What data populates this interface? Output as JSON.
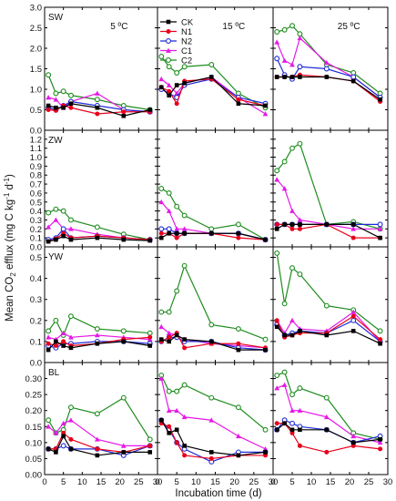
{
  "chart_data": {
    "type": "line",
    "xlabel": "Incubation time (d)",
    "ylabel_parts": {
      "a": "Mean CO",
      "b": "2",
      "c": " efflux (mg C kg",
      "d": "-1",
      "e": " d",
      "f": "-1",
      "g": ")"
    },
    "x": [
      1,
      3,
      5,
      7,
      14,
      21,
      28
    ],
    "xticks": [
      0,
      5,
      10,
      15,
      20,
      25,
      30
    ],
    "temperatures": [
      "5 ºC",
      "15 ºC",
      "25 ºC"
    ],
    "legend": [
      {
        "name": "CK",
        "color": "#000000",
        "marker": "square"
      },
      {
        "name": "N1",
        "color": "#e8001c",
        "marker": "circle"
      },
      {
        "name": "N2",
        "color": "#1f2bd6",
        "marker": "circle-open"
      },
      {
        "name": "C1",
        "color": "#e619e6",
        "marker": "triangle"
      },
      {
        "name": "C2",
        "color": "#1e8c1e",
        "marker": "circle-open"
      }
    ],
    "rows": [
      {
        "label": "SW",
        "ylim": [
          0,
          3.0
        ],
        "yticks": [
          "0.0",
          "0.5",
          "1.0",
          "1.5",
          "2.0",
          "2.5",
          "3.0"
        ],
        "panels": [
          {
            "CK": [
              0.6,
              0.55,
              0.55,
              0.65,
              0.55,
              0.35,
              0.5
            ],
            "N1": [
              0.5,
              0.48,
              0.6,
              0.55,
              0.4,
              0.45,
              0.45
            ],
            "N2": [
              0.55,
              0.5,
              0.6,
              0.7,
              0.6,
              0.5,
              0.45
            ],
            "C1": [
              0.8,
              0.75,
              0.55,
              0.7,
              0.9,
              0.5,
              0.45
            ],
            "C2": [
              1.35,
              0.9,
              0.95,
              0.85,
              0.75,
              0.6,
              0.5
            ]
          },
          {
            "CK": [
              1.05,
              0.85,
              1.1,
              1.15,
              1.3,
              0.65,
              0.6
            ],
            "N1": [
              1.05,
              0.95,
              0.65,
              1.2,
              1.25,
              0.75,
              0.6
            ],
            "N2": [
              1.0,
              0.9,
              0.8,
              1.1,
              1.25,
              0.8,
              0.65
            ],
            "C1": [
              1.25,
              1.1,
              0.9,
              1.15,
              1.3,
              0.8,
              0.4
            ],
            "C2": [
              1.8,
              1.55,
              1.4,
              1.55,
              1.6,
              0.9,
              0.55
            ]
          },
          {
            "CK": [
              1.3,
              1.3,
              1.3,
              1.3,
              1.3,
              1.2,
              0.75
            ],
            "N1": [
              1.3,
              1.3,
              1.3,
              1.35,
              1.3,
              1.2,
              0.7
            ],
            "N2": [
              1.75,
              1.35,
              1.25,
              1.55,
              1.5,
              1.3,
              0.8
            ],
            "C1": [
              2.15,
              1.7,
              1.6,
              2.25,
              1.65,
              1.3,
              0.8
            ],
            "C2": [
              2.4,
              2.45,
              2.55,
              2.35,
              1.6,
              1.4,
              0.9
            ]
          }
        ]
      },
      {
        "label": "ZW",
        "ylim": [
          0,
          1.3
        ],
        "yticks": [
          "0.0",
          "0.1",
          "0.2",
          "0.3",
          "0.4",
          "0.5",
          "0.6",
          "0.7",
          "0.8",
          "0.9",
          "1.0",
          "1.1",
          "1.2"
        ],
        "panels": [
          {
            "CK": [
              0.06,
              0.08,
              0.12,
              0.08,
              0.1,
              0.08,
              0.07
            ],
            "N1": [
              0.06,
              0.09,
              0.15,
              0.1,
              0.12,
              0.1,
              0.08
            ],
            "N2": [
              0.08,
              0.1,
              0.2,
              0.1,
              0.12,
              0.1,
              0.08
            ],
            "C1": [
              0.22,
              0.3,
              0.2,
              0.2,
              0.14,
              0.1,
              0.08
            ],
            "C2": [
              0.38,
              0.42,
              0.4,
              0.3,
              0.22,
              0.14,
              0.08
            ]
          },
          {
            "CK": [
              0.1,
              0.15,
              0.15,
              0.15,
              0.15,
              0.15,
              0.08
            ],
            "N1": [
              0.15,
              0.15,
              0.1,
              0.15,
              0.15,
              0.1,
              0.08
            ],
            "N2": [
              0.2,
              0.2,
              0.15,
              0.15,
              0.15,
              0.15,
              0.08
            ],
            "C1": [
              0.5,
              0.4,
              0.2,
              0.2,
              0.15,
              0.15,
              0.08
            ],
            "C2": [
              0.65,
              0.6,
              0.45,
              0.35,
              0.2,
              0.25,
              0.08
            ]
          },
          {
            "CK": [
              0.2,
              0.25,
              0.25,
              0.25,
              0.25,
              0.25,
              0.1
            ],
            "N1": [
              0.25,
              0.25,
              0.2,
              0.2,
              0.25,
              0.1,
              0.1
            ],
            "N2": [
              0.25,
              0.25,
              0.25,
              0.25,
              0.25,
              0.25,
              0.25
            ],
            "C1": [
              0.75,
              0.65,
              0.4,
              0.3,
              0.25,
              0.2,
              0.2
            ],
            "C2": [
              0.85,
              0.95,
              1.1,
              1.15,
              0.25,
              0.28,
              0.2
            ]
          }
        ]
      },
      {
        "label": "YW",
        "ylim": [
          0,
          0.55
        ],
        "yticks": [
          "0.0",
          "0.1",
          "0.2",
          "0.3",
          "0.4",
          "0.5"
        ],
        "panels": [
          {
            "CK": [
              0.06,
              0.1,
              0.08,
              0.07,
              0.09,
              0.1,
              0.08
            ],
            "N1": [
              0.09,
              0.08,
              0.1,
              0.08,
              0.09,
              0.11,
              0.12
            ],
            "N2": [
              0.08,
              0.07,
              0.09,
              0.09,
              0.1,
              0.1,
              0.09
            ],
            "C1": [
              0.12,
              0.11,
              0.14,
              0.12,
              0.13,
              0.12,
              0.11
            ],
            "C2": [
              0.15,
              0.2,
              0.13,
              0.22,
              0.16,
              0.15,
              0.14
            ]
          },
          {
            "CK": [
              0.11,
              0.1,
              0.13,
              0.11,
              0.1,
              0.06,
              0.06
            ],
            "N1": [
              0.1,
              0.12,
              0.14,
              0.07,
              0.09,
              0.09,
              0.07
            ],
            "N2": [
              0.1,
              0.12,
              0.12,
              0.1,
              0.1,
              0.07,
              0.06
            ],
            "C1": [
              0.17,
              0.14,
              0.13,
              0.11,
              0.09,
              0.08,
              0.07
            ],
            "C2": [
              0.24,
              0.24,
              0.34,
              0.46,
              0.18,
              0.16,
              0.11
            ]
          },
          {
            "CK": [
              0.17,
              0.13,
              0.13,
              0.15,
              0.13,
              0.15,
              0.09
            ],
            "N1": [
              0.2,
              0.12,
              0.13,
              0.14,
              0.14,
              0.22,
              0.11
            ],
            "N2": [
              0.18,
              0.13,
              0.14,
              0.15,
              0.14,
              0.2,
              0.1
            ],
            "C1": [
              0.2,
              0.14,
              0.2,
              0.16,
              0.15,
              0.24,
              0.1
            ],
            "C2": [
              0.52,
              0.28,
              0.45,
              0.42,
              0.27,
              0.25,
              0.15
            ]
          }
        ]
      },
      {
        "label": "BL",
        "ylim": [
          0,
          0.35
        ],
        "yticks": [
          "0.00",
          "0.05",
          "0.10",
          "0.15",
          "0.20",
          "0.25",
          "0.30"
        ],
        "panels": [
          {
            "CK": [
              0.08,
              0.07,
              0.12,
              0.08,
              0.06,
              0.07,
              0.07
            ],
            "N1": [
              0.08,
              0.08,
              0.13,
              0.11,
              0.08,
              0.07,
              0.09
            ],
            "N2": [
              0.08,
              0.08,
              0.09,
              0.08,
              0.08,
              0.06,
              0.09
            ],
            "C1": [
              0.15,
              0.13,
              0.16,
              0.17,
              0.11,
              0.09,
              0.09
            ],
            "C2": [
              0.17,
              0.13,
              0.14,
              0.21,
              0.19,
              0.24,
              0.11
            ]
          },
          {
            "CK": [
              0.17,
              0.13,
              0.14,
              0.09,
              0.07,
              0.06,
              0.07
            ],
            "N1": [
              0.16,
              0.15,
              0.1,
              0.06,
              0.05,
              0.06,
              0.06
            ],
            "N2": [
              0.17,
              0.14,
              0.1,
              0.08,
              0.04,
              0.07,
              0.07
            ],
            "C1": [
              0.3,
              0.2,
              0.2,
              0.18,
              0.17,
              0.12,
              0.08
            ],
            "C2": [
              0.31,
              0.26,
              0.26,
              0.28,
              0.24,
              0.21,
              0.14
            ]
          },
          {
            "CK": [
              0.14,
              0.16,
              0.14,
              0.14,
              0.14,
              0.1,
              0.11
            ],
            "N1": [
              0.16,
              0.16,
              0.13,
              0.09,
              0.07,
              0.09,
              0.08
            ],
            "N2": [
              0.14,
              0.17,
              0.16,
              0.15,
              0.14,
              0.1,
              0.12
            ],
            "C1": [
              0.27,
              0.28,
              0.2,
              0.2,
              0.18,
              0.12,
              0.1
            ],
            "C2": [
              0.31,
              0.32,
              0.25,
              0.27,
              0.24,
              0.13,
              0.11
            ]
          }
        ]
      }
    ]
  }
}
